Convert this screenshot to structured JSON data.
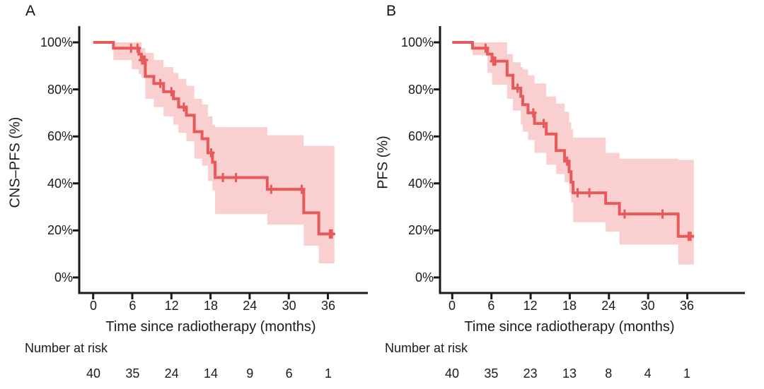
{
  "style": {
    "curve_color": "#e85a5a",
    "band_color": "#f9cfd0",
    "axis_color": "#1a1a1a",
    "text_color": "#1b1b1b",
    "background": "#ffffff"
  },
  "chart_data": [
    {
      "panel": "A",
      "type": "line",
      "subtype": "kaplan-meier-step-curve-with-ci-band",
      "ylabel": "CNS–PFS (%)",
      "xlabel": "Time since radiotherapy (months)",
      "xlim": [
        0,
        42
      ],
      "ylim": [
        0,
        100
      ],
      "grid": false,
      "legend": false,
      "x_ticks": [
        0,
        6,
        12,
        18,
        24,
        30,
        36
      ],
      "y_tick_labels": [
        "100%",
        "80%",
        "60%",
        "40%",
        "20%",
        "0%"
      ],
      "y_ticks_pct": [
        100,
        80,
        60,
        40,
        20,
        0
      ],
      "end_t": 37.0,
      "steps_t_pct": [
        [
          0,
          100
        ],
        [
          3.1,
          97.5
        ],
        [
          7.0,
          95
        ],
        [
          7.4,
          92.5
        ],
        [
          8.0,
          85.5
        ],
        [
          9.3,
          82.5
        ],
        [
          10.8,
          79
        ],
        [
          12.3,
          76
        ],
        [
          13.1,
          72.5
        ],
        [
          14.3,
          69
        ],
        [
          15.5,
          62
        ],
        [
          16.7,
          59
        ],
        [
          17.6,
          53
        ],
        [
          18.3,
          49
        ],
        [
          18.7,
          42.5
        ],
        [
          26.7,
          37.5
        ],
        [
          32.3,
          27.5
        ],
        [
          34.6,
          18.5
        ]
      ],
      "censor_marks_t_pct": [
        [
          5.8,
          97.5
        ],
        [
          6.8,
          97.5
        ],
        [
          7.5,
          92.5
        ],
        [
          7.7,
          92.5
        ],
        [
          7.9,
          92.5
        ],
        [
          10.3,
          82.5
        ],
        [
          12.0,
          79
        ],
        [
          13.9,
          72.5
        ],
        [
          18.1,
          53
        ],
        [
          19.9,
          42.5
        ],
        [
          21.9,
          42.5
        ],
        [
          27.3,
          37.5
        ],
        [
          32.0,
          37.5
        ],
        [
          36.3,
          18.5
        ],
        [
          36.6,
          18.5
        ]
      ],
      "ci_band_t_hi_lo": [
        [
          3.1,
          100,
          92.5
        ],
        [
          5.9,
          100,
          88.5
        ],
        [
          7.0,
          100,
          86.5
        ],
        [
          7.4,
          97.5,
          85
        ],
        [
          8.0,
          95.5,
          76
        ],
        [
          9.3,
          92.5,
          72.5
        ],
        [
          10.8,
          89.5,
          68.5
        ],
        [
          12.3,
          87,
          65
        ],
        [
          13.1,
          84.5,
          61.5
        ],
        [
          14.3,
          81.5,
          58
        ],
        [
          15.5,
          76,
          50.5
        ],
        [
          16.7,
          73.5,
          47.5
        ],
        [
          17.6,
          68.5,
          41
        ],
        [
          18.3,
          65,
          37
        ],
        [
          18.7,
          64,
          27
        ],
        [
          26.7,
          60.5,
          22.5
        ],
        [
          32.3,
          56,
          13.5
        ],
        [
          34.6,
          56,
          6
        ]
      ],
      "number_at_risk": {
        "label": "Number at risk",
        "times": [
          0,
          6,
          12,
          18,
          24,
          30,
          36
        ],
        "counts": [
          40,
          35,
          24,
          14,
          9,
          6,
          1
        ]
      }
    },
    {
      "panel": "B",
      "type": "line",
      "subtype": "kaplan-meier-step-curve-with-ci-band",
      "ylabel": "PFS (%)",
      "xlabel": "Time since radiotherapy (months)",
      "xlim": [
        0,
        42
      ],
      "ylim": [
        0,
        100
      ],
      "grid": false,
      "legend": false,
      "x_ticks": [
        0,
        6,
        12,
        18,
        24,
        30,
        36
      ],
      "y_tick_labels": [
        "100%",
        "80%",
        "60%",
        "40%",
        "20%",
        "0%"
      ],
      "y_ticks_pct": [
        100,
        80,
        60,
        40,
        20,
        0
      ],
      "end_t": 37.0,
      "steps_t_pct": [
        [
          0,
          100
        ],
        [
          3.1,
          97.5
        ],
        [
          5.4,
          95
        ],
        [
          6.1,
          92
        ],
        [
          8.4,
          86
        ],
        [
          9.3,
          80.5
        ],
        [
          10.5,
          77
        ],
        [
          10.8,
          73.5
        ],
        [
          11.6,
          70
        ],
        [
          12.6,
          65.5
        ],
        [
          14.4,
          61
        ],
        [
          15.9,
          54
        ],
        [
          17.2,
          49.5
        ],
        [
          17.9,
          45
        ],
        [
          18.2,
          40.5
        ],
        [
          18.5,
          36
        ],
        [
          23.5,
          31.5
        ],
        [
          25.6,
          27
        ],
        [
          34.6,
          17.5
        ]
      ],
      "censor_marks_t_pct": [
        [
          5.1,
          97.5
        ],
        [
          6.3,
          92
        ],
        [
          6.6,
          92
        ],
        [
          10.0,
          80.5
        ],
        [
          12.4,
          70
        ],
        [
          14.0,
          65.5
        ],
        [
          17.6,
          49.5
        ],
        [
          19.2,
          36
        ],
        [
          21.0,
          36
        ],
        [
          26.4,
          27
        ],
        [
          32.2,
          27
        ],
        [
          36.2,
          17.5
        ],
        [
          36.5,
          17.5
        ]
      ],
      "ci_band_t_hi_lo": [
        [
          3.1,
          100,
          94.5
        ],
        [
          5.4,
          100,
          87
        ],
        [
          6.1,
          100,
          82
        ],
        [
          8.4,
          95,
          76
        ],
        [
          9.3,
          91.5,
          71
        ],
        [
          10.5,
          89.5,
          65
        ],
        [
          10.8,
          88.5,
          62
        ],
        [
          11.6,
          86,
          58.5
        ],
        [
          12.6,
          82.5,
          53
        ],
        [
          14.4,
          77,
          48
        ],
        [
          15.9,
          74,
          44
        ],
        [
          17.2,
          70.5,
          40.5
        ],
        [
          17.9,
          66,
          36
        ],
        [
          18.2,
          63,
          32
        ],
        [
          18.5,
          59.5,
          23.5
        ],
        [
          23.5,
          53,
          19.5
        ],
        [
          25.6,
          50.5,
          14
        ],
        [
          34.6,
          50,
          5.5
        ]
      ],
      "number_at_risk": {
        "label": "Number at risk",
        "times": [
          0,
          6,
          12,
          18,
          24,
          30,
          36
        ],
        "counts": [
          40,
          35,
          23,
          13,
          8,
          4,
          1
        ]
      }
    }
  ]
}
